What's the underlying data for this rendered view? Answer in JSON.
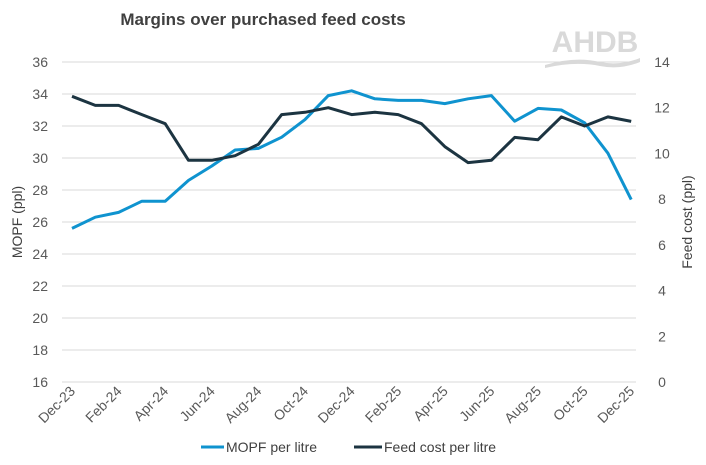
{
  "chart_data": {
    "type": "line",
    "title": "Margins over purchased feed costs",
    "logo_text": "AHDB",
    "categories": [
      "Dec-23",
      "Jan-24",
      "Feb-24",
      "Mar-24",
      "Apr-24",
      "May-24",
      "Jun-24",
      "Jul-24",
      "Aug-24",
      "Sep-24",
      "Oct-24",
      "Nov-24",
      "Dec-24",
      "Jan-25",
      "Feb-25",
      "Mar-25",
      "Apr-25",
      "May-25",
      "Jun-25",
      "Jul-25",
      "Aug-25",
      "Sep-25",
      "Oct-25",
      "Nov-25",
      "Dec-25"
    ],
    "tick_labels": [
      "Dec-23",
      "Feb-24",
      "Apr-24",
      "Jun-24",
      "Aug-24",
      "Oct-24",
      "Dec-24",
      "Feb-25",
      "Apr-25",
      "Jun-25",
      "Aug-25",
      "Oct-25",
      "Dec-25"
    ],
    "ylabel": "MOPF (ppl)",
    "y2label": "Feed cost (ppl)",
    "ylim": [
      16,
      36
    ],
    "y2lim": [
      0,
      14
    ],
    "yticks": [
      16,
      18,
      20,
      22,
      24,
      26,
      28,
      30,
      32,
      34,
      36
    ],
    "y2ticks": [
      0,
      2,
      4,
      6,
      8,
      10,
      12,
      14
    ],
    "grid": true,
    "legend_position": "bottom",
    "series": [
      {
        "name": "MOPF per litre",
        "axis": "left",
        "color": "#0f93cf",
        "values": [
          25.6,
          26.3,
          26.6,
          27.3,
          27.3,
          28.6,
          29.5,
          30.5,
          30.6,
          31.3,
          32.4,
          33.9,
          34.2,
          33.7,
          33.6,
          33.6,
          33.4,
          33.7,
          33.9,
          32.3,
          33.1,
          33.0,
          32.2,
          30.3,
          27.4
        ]
      },
      {
        "name": "Feed cost per litre",
        "axis": "right",
        "color": "#1c3441",
        "values": [
          12.5,
          12.1,
          12.1,
          11.7,
          11.3,
          9.7,
          9.7,
          9.9,
          10.4,
          11.7,
          11.8,
          12.0,
          11.7,
          11.8,
          11.7,
          11.3,
          10.3,
          9.6,
          9.7,
          10.7,
          10.6,
          11.6,
          11.2,
          11.6,
          11.4
        ]
      }
    ]
  }
}
